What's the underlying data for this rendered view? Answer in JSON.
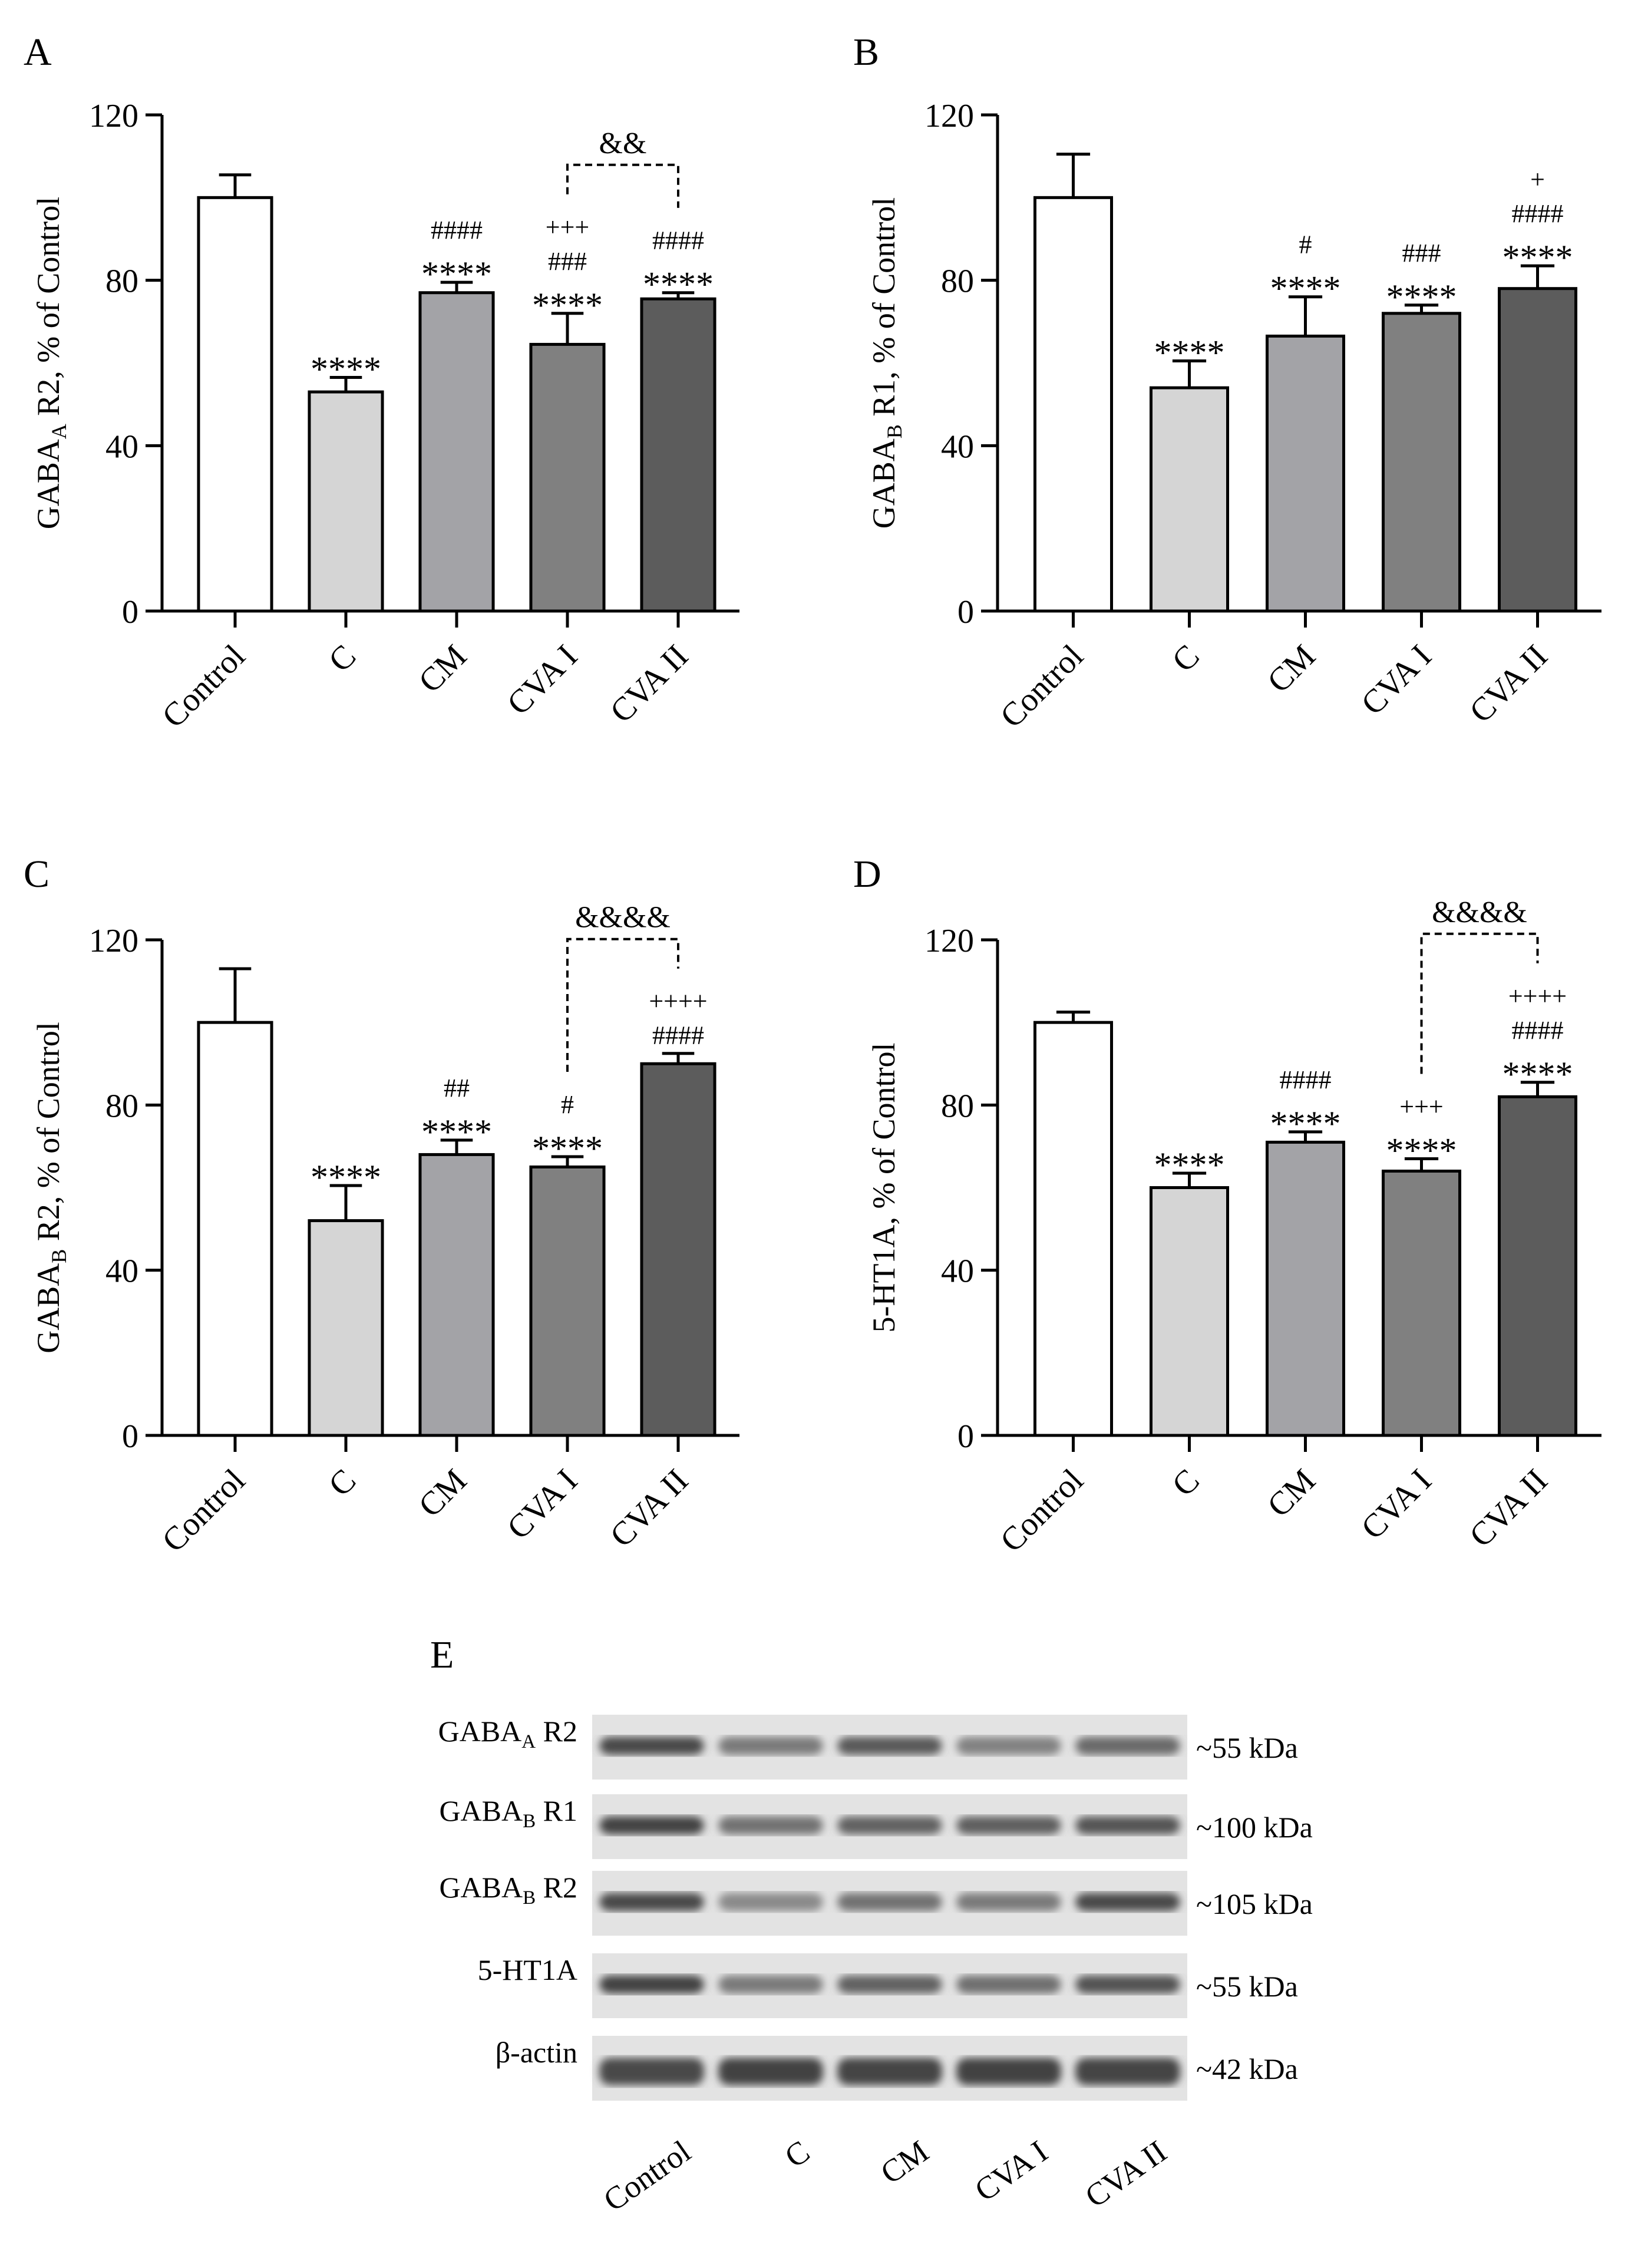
{
  "chart_data": [
    {
      "panel_label": "A",
      "type": "bar",
      "ylabel": {
        "main": "GABA",
        "sub": "A",
        "rest": " R2, % of Control"
      },
      "ylim": [
        0,
        120
      ],
      "yticks": [
        "0",
        "40",
        "80",
        "120"
      ],
      "categories": [
        "Control",
        "C",
        "CM",
        "CVA I",
        "CVA II"
      ],
      "values": [
        100,
        53,
        77,
        64.5,
        75.5
      ],
      "errors": [
        5.5,
        3.5,
        2.5,
        7.5,
        1.5
      ],
      "colors": [
        "#ffffff",
        "#d5d5d5",
        "#a3a3a7",
        "#808080",
        "#5c5c5c"
      ],
      "annotations": [
        [],
        [
          "****"
        ],
        [
          "####",
          "****"
        ],
        [
          "+++",
          "###",
          "****"
        ],
        [
          "####",
          "****"
        ]
      ],
      "brackets": [
        {
          "from": "CVA I",
          "to": "CVA II",
          "label": "&&"
        }
      ]
    },
    {
      "panel_label": "B",
      "type": "bar",
      "ylabel": {
        "main": "GABA",
        "sub": "B",
        "rest": " R1, % of Control"
      },
      "ylim": [
        0,
        120
      ],
      "yticks": [
        "0",
        "40",
        "80",
        "120"
      ],
      "categories": [
        "Control",
        "C",
        "CM",
        "CVA I",
        "CVA II"
      ],
      "values": [
        100,
        54,
        66.5,
        72,
        78
      ],
      "errors": [
        10.5,
        6.5,
        9.5,
        2,
        5.5
      ],
      "colors": [
        "#ffffff",
        "#d5d5d5",
        "#a3a3a7",
        "#808080",
        "#5c5c5c"
      ],
      "annotations": [
        [],
        [
          "****"
        ],
        [
          "#",
          "****"
        ],
        [
          "###",
          "****"
        ],
        [
          "+",
          "####",
          "****"
        ]
      ],
      "brackets": []
    },
    {
      "panel_label": "C",
      "type": "bar",
      "ylabel": {
        "main": "GABA",
        "sub": "B",
        "rest": " R2, % of Control"
      },
      "ylim": [
        0,
        120
      ],
      "yticks": [
        "0",
        "40",
        "80",
        "120"
      ],
      "categories": [
        "Control",
        "C",
        "CM",
        "CVA I",
        "CVA II"
      ],
      "values": [
        100,
        52,
        68,
        65,
        90
      ],
      "errors": [
        13,
        8.5,
        3.5,
        2.5,
        2.5
      ],
      "colors": [
        "#ffffff",
        "#d5d5d5",
        "#a3a3a7",
        "#808080",
        "#5c5c5c"
      ],
      "annotations": [
        [],
        [
          "****"
        ],
        [
          "##",
          "****"
        ],
        [
          "#",
          "****"
        ],
        [
          "++++",
          "####"
        ]
      ],
      "brackets": [
        {
          "from": "CVA I",
          "to": "CVA II",
          "label": "&&&&"
        }
      ]
    },
    {
      "panel_label": "D",
      "type": "bar",
      "ylabel": {
        "main": "5-HT1A, % of Control",
        "sub": "",
        "rest": ""
      },
      "ylim": [
        0,
        120
      ],
      "yticks": [
        "0",
        "40",
        "80",
        "120"
      ],
      "categories": [
        "Control",
        "C",
        "CM",
        "CVA I",
        "CVA II"
      ],
      "values": [
        100,
        60,
        71,
        64,
        82
      ],
      "errors": [
        2.5,
        3.5,
        2.5,
        3,
        3.5
      ],
      "colors": [
        "#ffffff",
        "#d5d5d5",
        "#a3a3a7",
        "#808080",
        "#5c5c5c"
      ],
      "annotations": [
        [],
        [
          "****"
        ],
        [
          "####",
          "****"
        ],
        [
          "+++",
          "****"
        ],
        [
          "++++",
          "####",
          "****"
        ]
      ],
      "brackets": [
        {
          "from": "CVA I",
          "to": "CVA II",
          "label": "&&&&"
        }
      ]
    }
  ],
  "blot": {
    "panel_label": "E",
    "rows": [
      {
        "main": "GABA",
        "sub": "A",
        "rest": " R2",
        "kda": "~55 kDa"
      },
      {
        "main": "GABA",
        "sub": "B",
        "rest": " R1",
        "kda": "~100 kDa"
      },
      {
        "main": "GABA",
        "sub": "B",
        "rest": " R2",
        "kda": "~105 kDa"
      },
      {
        "main": "5-HT1A",
        "sub": "",
        "rest": "",
        "kda": "~55 kDa"
      },
      {
        "main": "β-actin",
        "sub": "",
        "rest": "",
        "kda": "~42 kDa"
      }
    ],
    "lanes": [
      "Control",
      "C",
      "CM",
      "CVA I",
      "CVA II"
    ]
  }
}
